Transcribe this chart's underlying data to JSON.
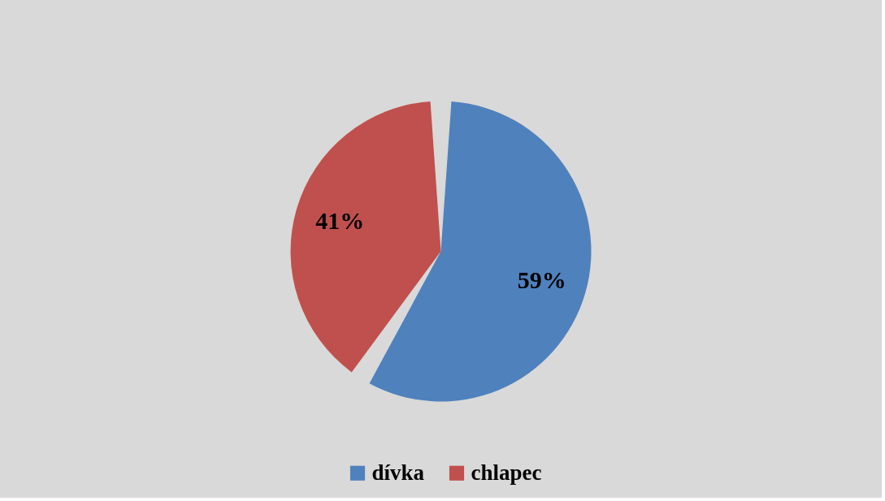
{
  "chart_data": {
    "type": "pie",
    "categories": [
      "dívka",
      "chlapec"
    ],
    "values": [
      59,
      41
    ],
    "colors": [
      "#4f81bd",
      "#c0504d"
    ],
    "value_labels": [
      "59%",
      "41%"
    ],
    "legend": "bottom"
  }
}
